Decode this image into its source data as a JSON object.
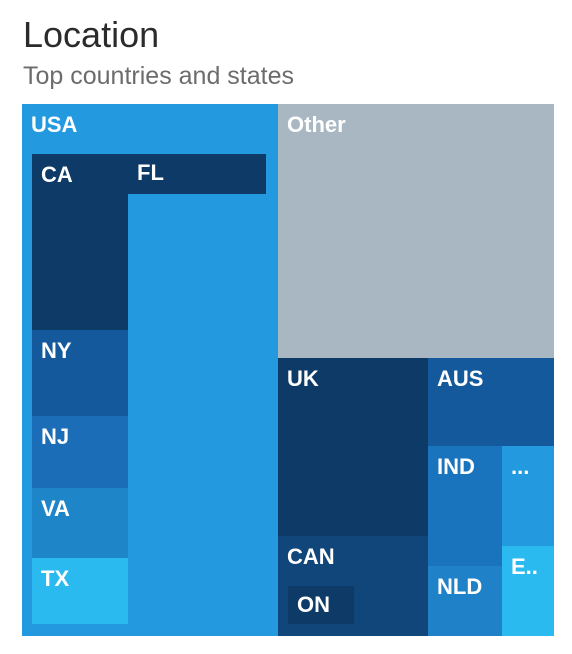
{
  "title": "Location",
  "subtitle": "Top countries and states",
  "colors": {
    "usa": "#2399e0",
    "other": "#a8b7c2",
    "dark": "#0d3a66",
    "mid": "#13599c",
    "blue": "#1a73bd",
    "light": "#2bbaf0"
  },
  "chart_data": {
    "type": "treemap",
    "title": "Location",
    "subtitle": "Top countries and states",
    "groups": [
      {
        "label": "USA",
        "color": "#2399e0",
        "children": [
          {
            "label": "CA",
            "color": "#0d3a66"
          },
          {
            "label": "FL",
            "color": "#0d3a66"
          },
          {
            "label": "NY",
            "color": "#13599c"
          },
          {
            "label": "NJ",
            "color": "#1a6db6"
          },
          {
            "label": "VA",
            "color": "#1f85c9"
          },
          {
            "label": "TX",
            "color": "#2bbaf0"
          }
        ]
      },
      {
        "label": "Other",
        "color": "#a8b7c2",
        "children": []
      },
      {
        "label": "UK",
        "color": "#0d3a66",
        "children": []
      },
      {
        "label": "CAN",
        "color": "#104679",
        "children": [
          {
            "label": "ON",
            "color": "#0d3a66"
          }
        ]
      },
      {
        "label": "AUS",
        "color": "#13599c",
        "children": []
      },
      {
        "label": "IND",
        "color": "#1a73bd",
        "children": []
      },
      {
        "label": "NLD",
        "color": "#1f82c8",
        "children": []
      },
      {
        "label": "...",
        "color": "#2399e0",
        "children": []
      },
      {
        "label": "E..",
        "color": "#2bbaf0",
        "children": []
      }
    ]
  }
}
